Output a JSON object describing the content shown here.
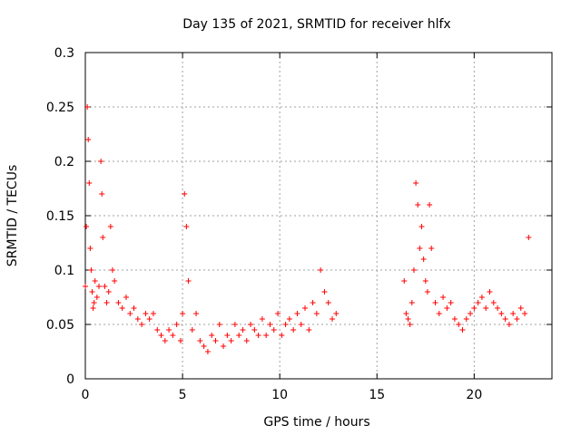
{
  "chart_data": {
    "type": "scatter",
    "title": "Day 135 of 2021, SRMTID for receiver hlfx",
    "xlabel": "GPS time / hours",
    "ylabel": "SRMTID / TECUs",
    "xlim": [
      0,
      24
    ],
    "ylim": [
      0,
      0.3
    ],
    "x_ticks": [
      "0",
      "5",
      "10",
      "15",
      "20"
    ],
    "y_ticks": [
      "0",
      "0.05",
      "0.1",
      "0.15",
      "0.2",
      "0.25",
      "0.3"
    ],
    "grid": true,
    "legend": "none",
    "marker": "plus",
    "color": "#ff0000",
    "series": [
      {
        "x": [
          0.0,
          0.05,
          0.1,
          0.15,
          0.2,
          0.25,
          0.3,
          0.35,
          0.4,
          0.45,
          0.5,
          0.6,
          0.7,
          0.8,
          0.85,
          0.9,
          1.0,
          1.1,
          1.2,
          1.3,
          1.4,
          1.5,
          1.7,
          1.9,
          2.1,
          2.3,
          2.5,
          2.7,
          2.9,
          3.1,
          3.3,
          3.5,
          3.7,
          3.9,
          4.1,
          4.3,
          4.5,
          4.7,
          4.9,
          5.0,
          5.1,
          5.2,
          5.3,
          5.5,
          5.7,
          5.9,
          6.1,
          6.3,
          6.5,
          6.7,
          6.9,
          7.1,
          7.3,
          7.5,
          7.7,
          7.9,
          8.1,
          8.3,
          8.5,
          8.7,
          8.9,
          9.1,
          9.3,
          9.5,
          9.7,
          9.9,
          10.1,
          10.3,
          10.5,
          10.7,
          10.9,
          11.1,
          11.3,
          11.5,
          11.7,
          11.9,
          12.1,
          12.3,
          12.5,
          12.7,
          12.9,
          16.4,
          16.5,
          16.6,
          16.7,
          16.8,
          16.9,
          17.0,
          17.1,
          17.2,
          17.3,
          17.4,
          17.5,
          17.6,
          17.7,
          17.8,
          18.0,
          18.2,
          18.4,
          18.6,
          18.8,
          19.0,
          19.2,
          19.4,
          19.6,
          19.8,
          20.0,
          20.2,
          20.4,
          20.6,
          20.8,
          21.0,
          21.2,
          21.4,
          21.6,
          21.8,
          22.0,
          22.2,
          22.4,
          22.6,
          22.8
        ],
        "y": [
          0.085,
          0.14,
          0.25,
          0.22,
          0.18,
          0.12,
          0.1,
          0.08,
          0.065,
          0.07,
          0.09,
          0.075,
          0.085,
          0.2,
          0.17,
          0.13,
          0.085,
          0.07,
          0.08,
          0.14,
          0.1,
          0.09,
          0.07,
          0.065,
          0.075,
          0.06,
          0.065,
          0.055,
          0.05,
          0.06,
          0.055,
          0.06,
          0.045,
          0.04,
          0.035,
          0.045,
          0.04,
          0.05,
          0.035,
          0.06,
          0.17,
          0.14,
          0.09,
          0.045,
          0.06,
          0.035,
          0.03,
          0.025,
          0.04,
          0.035,
          0.05,
          0.03,
          0.04,
          0.035,
          0.05,
          0.04,
          0.045,
          0.035,
          0.05,
          0.045,
          0.04,
          0.055,
          0.04,
          0.05,
          0.045,
          0.06,
          0.04,
          0.05,
          0.055,
          0.045,
          0.06,
          0.05,
          0.065,
          0.045,
          0.07,
          0.06,
          0.1,
          0.08,
          0.07,
          0.055,
          0.06,
          0.09,
          0.06,
          0.055,
          0.05,
          0.07,
          0.1,
          0.18,
          0.16,
          0.12,
          0.14,
          0.11,
          0.09,
          0.08,
          0.16,
          0.12,
          0.07,
          0.06,
          0.075,
          0.065,
          0.07,
          0.055,
          0.05,
          0.045,
          0.055,
          0.06,
          0.065,
          0.07,
          0.075,
          0.065,
          0.08,
          0.07,
          0.065,
          0.06,
          0.055,
          0.05,
          0.06,
          0.055,
          0.065,
          0.06,
          0.13
        ]
      }
    ]
  }
}
